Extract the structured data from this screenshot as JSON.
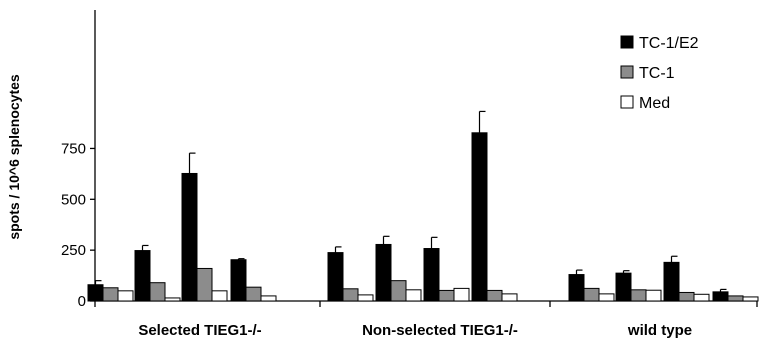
{
  "chart_data": {
    "type": "bar",
    "title": "",
    "xlabel": "",
    "ylabel": "spots / 10^6 splenocytes",
    "ylim": [
      0,
      900
    ],
    "yticks": [
      0,
      250,
      500,
      750
    ],
    "grid": false,
    "legend_position": "top-right",
    "colors": {
      "TC-1/E2": "#000000",
      "TC-1": "#8c8c8c",
      "Med": "#ffffff"
    },
    "groups": [
      {
        "label": "Selected TIEG1-/-",
        "subgroups": 4
      },
      {
        "label": "Non-selected TIEG1-/-",
        "subgroups": 4
      },
      {
        "label": "wild type",
        "subgroups": 4
      }
    ],
    "series": [
      {
        "name": "TC-1/E2",
        "values": [
          80,
          248,
          627,
          203,
          238,
          278,
          258,
          827,
          130,
          137,
          190,
          45
        ],
        "errors": [
          20,
          25,
          100,
          5,
          28,
          40,
          55,
          105,
          22,
          12,
          30,
          12
        ]
      },
      {
        "name": "TC-1",
        "values": [
          65,
          90,
          160,
          68,
          60,
          100,
          52,
          52,
          62,
          55,
          42,
          25
        ],
        "errors": [
          0,
          0,
          0,
          0,
          0,
          0,
          0,
          0,
          0,
          0,
          0,
          0
        ]
      },
      {
        "name": "Med",
        "values": [
          50,
          15,
          50,
          25,
          30,
          55,
          62,
          35,
          35,
          53,
          33,
          20
        ],
        "errors": [
          0,
          0,
          0,
          0,
          0,
          0,
          0,
          0,
          0,
          0,
          0,
          0
        ]
      }
    ]
  }
}
